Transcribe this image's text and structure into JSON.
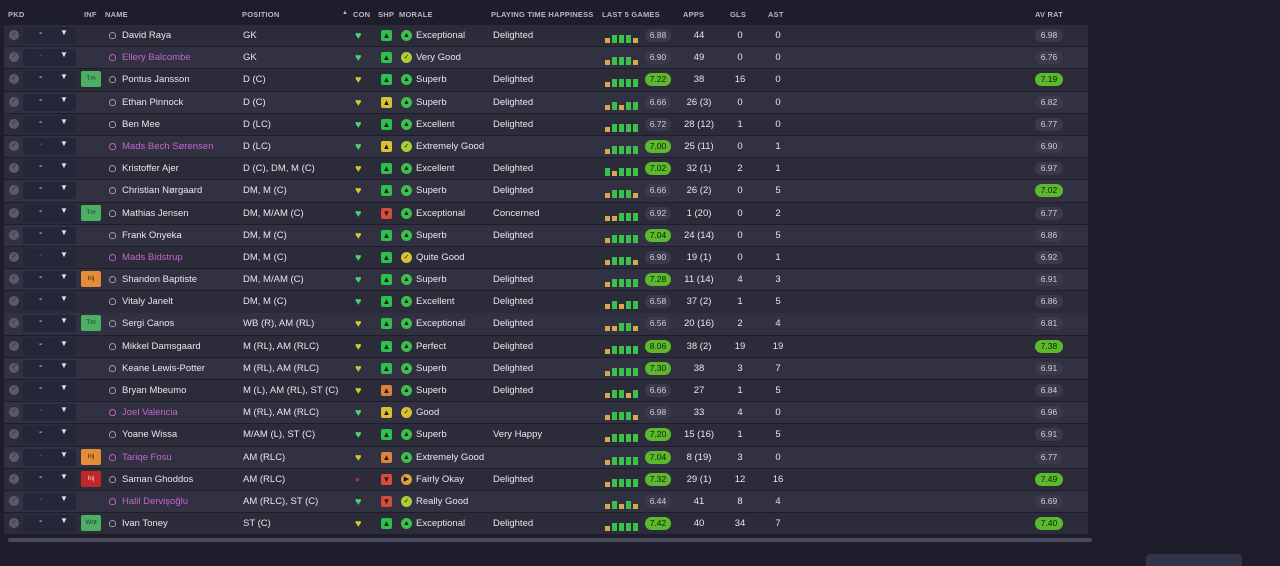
{
  "columns": {
    "pkd": "PKD",
    "inf": "INF",
    "name": "NAME",
    "position": "POSITION",
    "con": "CON",
    "shp": "SHP",
    "morale": "MORALE",
    "pth": "PLAYING TIME HAPPINESS",
    "last5": "LAST 5 GAMES",
    "apps": "APPS",
    "gls": "GLS",
    "ast": "AST",
    "avrat": "AV RAT",
    "sort_icon": "sort-ascending-arrow"
  },
  "players": [
    {
      "name": "David Raya",
      "pink": false,
      "inf": "",
      "position": "GK",
      "con": "green",
      "shp": "green",
      "morale": "Exceptional",
      "mor": "green",
      "pth": "Delighted",
      "last5": [
        1,
        2,
        2,
        2,
        1
      ],
      "last5avg": "6.88",
      "hi": false,
      "apps": "44",
      "gls": "0",
      "ast": "0",
      "avrat": "6.98",
      "avhi": false,
      "pkd_red": false
    },
    {
      "name": "Ellery Balcombe",
      "pink": true,
      "inf": "",
      "position": "GK",
      "con": "green",
      "shp": "green",
      "morale": "Very Good",
      "mor": "lime",
      "pth": "",
      "last5": [
        1,
        2,
        2,
        2,
        1
      ],
      "last5avg": "6.90",
      "hi": false,
      "apps": "49",
      "gls": "0",
      "ast": "0",
      "avrat": "6.76",
      "avhi": false,
      "pkd_red": true
    },
    {
      "name": "Pontus Jansson",
      "pink": false,
      "inf": "Tm",
      "position": "D (C)",
      "con": "yellow",
      "shp": "green",
      "morale": "Superb",
      "mor": "green",
      "pth": "Delighted",
      "last5": [
        1,
        2,
        2,
        2,
        2
      ],
      "last5avg": "7.22",
      "hi": true,
      "apps": "38",
      "gls": "16",
      "ast": "0",
      "avrat": "7.19",
      "avhi": true,
      "pkd_red": false
    },
    {
      "name": "Ethan Pinnock",
      "pink": false,
      "inf": "",
      "position": "D (C)",
      "con": "yellow",
      "shp": "yellow",
      "morale": "Superb",
      "mor": "green",
      "pth": "Delighted",
      "last5": [
        1,
        2,
        1,
        2,
        2
      ],
      "last5avg": "6.66",
      "hi": false,
      "apps": "26 (3)",
      "gls": "0",
      "ast": "0",
      "avrat": "6.82",
      "avhi": false,
      "pkd_red": false
    },
    {
      "name": "Ben Mee",
      "pink": false,
      "inf": "",
      "position": "D (LC)",
      "con": "green",
      "shp": "green",
      "morale": "Excellent",
      "mor": "green",
      "pth": "Delighted",
      "last5": [
        1,
        2,
        2,
        2,
        2
      ],
      "last5avg": "6.72",
      "hi": false,
      "apps": "28 (12)",
      "gls": "1",
      "ast": "0",
      "avrat": "6.77",
      "avhi": false,
      "pkd_red": false
    },
    {
      "name": "Mads Bech Sørensen",
      "pink": true,
      "inf": "",
      "position": "D (LC)",
      "con": "green",
      "shp": "yellow",
      "morale": "Extremely Good",
      "mor": "lime",
      "pth": "",
      "last5": [
        1,
        2,
        2,
        2,
        2
      ],
      "last5avg": "7.00",
      "hi": true,
      "apps": "25 (11)",
      "gls": "0",
      "ast": "1",
      "avrat": "6.90",
      "avhi": false,
      "pkd_red": true
    },
    {
      "name": "Kristoffer Ajer",
      "pink": false,
      "inf": "",
      "position": "D (C), DM, M (C)",
      "con": "yellow",
      "shp": "green",
      "morale": "Excellent",
      "mor": "green",
      "pth": "Delighted",
      "last5": [
        2,
        1,
        2,
        2,
        2
      ],
      "last5avg": "7.02",
      "hi": true,
      "apps": "32 (1)",
      "gls": "2",
      "ast": "1",
      "avrat": "6.97",
      "avhi": false,
      "pkd_red": false
    },
    {
      "name": "Christian Nørgaard",
      "pink": false,
      "inf": "",
      "position": "DM, M (C)",
      "con": "yellow",
      "shp": "green",
      "morale": "Superb",
      "mor": "green",
      "pth": "Delighted",
      "last5": [
        1,
        2,
        2,
        2,
        1
      ],
      "last5avg": "6.66",
      "hi": false,
      "apps": "26 (2)",
      "gls": "0",
      "ast": "5",
      "avrat": "7.02",
      "avhi": true,
      "pkd_red": false
    },
    {
      "name": "Mathias Jensen",
      "pink": false,
      "inf": "Tm",
      "position": "DM, M/AM (C)",
      "con": "green",
      "shp": "red",
      "morale": "Exceptional",
      "mor": "green",
      "pth": "Concerned",
      "last5": [
        1,
        1,
        2,
        2,
        2
      ],
      "last5avg": "6.92",
      "hi": false,
      "apps": "1 (20)",
      "gls": "0",
      "ast": "2",
      "avrat": "6.77",
      "avhi": false,
      "pkd_red": false
    },
    {
      "name": "Frank Onyeka",
      "pink": false,
      "inf": "",
      "position": "DM, M (C)",
      "con": "yellow",
      "shp": "green",
      "morale": "Superb",
      "mor": "green",
      "pth": "Delighted",
      "last5": [
        1,
        2,
        2,
        2,
        2
      ],
      "last5avg": "7.04",
      "hi": true,
      "apps": "24 (14)",
      "gls": "0",
      "ast": "5",
      "avrat": "6.86",
      "avhi": false,
      "pkd_red": false
    },
    {
      "name": "Mads Bidstrup",
      "pink": true,
      "inf": "",
      "position": "DM, M (C)",
      "con": "green",
      "shp": "green",
      "morale": "Quite Good",
      "mor": "yellow",
      "pth": "",
      "last5": [
        1,
        2,
        2,
        2,
        1
      ],
      "last5avg": "6.90",
      "hi": false,
      "apps": "19 (1)",
      "gls": "0",
      "ast": "1",
      "avrat": "6.92",
      "avhi": false,
      "pkd_red": true
    },
    {
      "name": "Shandon Baptiste",
      "pink": false,
      "inf": "Inj",
      "position": "DM, M/AM (C)",
      "con": "green",
      "shp": "green",
      "morale": "Superb",
      "mor": "green",
      "pth": "Delighted",
      "last5": [
        1,
        2,
        2,
        2,
        2
      ],
      "last5avg": "7.28",
      "hi": true,
      "apps": "11 (14)",
      "gls": "4",
      "ast": "3",
      "avrat": "6.91",
      "avhi": false,
      "pkd_red": false
    },
    {
      "name": "Vitaly Janelt",
      "pink": false,
      "inf": "",
      "position": "DM, M (C)",
      "con": "green",
      "shp": "green",
      "morale": "Excellent",
      "mor": "green",
      "pth": "Delighted",
      "last5": [
        1,
        2,
        1,
        2,
        2
      ],
      "last5avg": "6.58",
      "hi": false,
      "apps": "37 (2)",
      "gls": "1",
      "ast": "5",
      "avrat": "6.86",
      "avhi": false,
      "pkd_red": false
    },
    {
      "name": "Sergi Canos",
      "pink": false,
      "inf": "Tm",
      "position": "WB (R), AM (RL)",
      "con": "yellow",
      "shp": "green",
      "morale": "Exceptional",
      "mor": "green",
      "pth": "Delighted",
      "last5": [
        1,
        1,
        2,
        2,
        1
      ],
      "last5avg": "6.56",
      "hi": false,
      "apps": "20 (16)",
      "gls": "2",
      "ast": "4",
      "avrat": "6.81",
      "avhi": false,
      "pkd_red": false
    },
    {
      "name": "Mikkel Damsgaard",
      "pink": false,
      "inf": "",
      "position": "M (RL), AM (RLC)",
      "con": "yellow",
      "shp": "green",
      "morale": "Perfect",
      "mor": "green",
      "pth": "Delighted",
      "last5": [
        1,
        2,
        2,
        2,
        2
      ],
      "last5avg": "8.06",
      "hi": true,
      "apps": "38 (2)",
      "gls": "19",
      "ast": "19",
      "avrat": "7.38",
      "avhi": true,
      "pkd_red": false
    },
    {
      "name": "Keane Lewis-Potter",
      "pink": false,
      "inf": "",
      "position": "M (RL), AM (RLC)",
      "con": "yellow",
      "shp": "green",
      "morale": "Superb",
      "mor": "green",
      "pth": "Delighted",
      "last5": [
        1,
        2,
        2,
        2,
        2
      ],
      "last5avg": "7.30",
      "hi": true,
      "apps": "38",
      "gls": "3",
      "ast": "7",
      "avrat": "6.91",
      "avhi": false,
      "pkd_red": false
    },
    {
      "name": "Bryan Mbeumo",
      "pink": false,
      "inf": "",
      "position": "M (L), AM (RL), ST (C)",
      "con": "yellow",
      "shp": "orange",
      "morale": "Superb",
      "mor": "green",
      "pth": "Delighted",
      "last5": [
        1,
        2,
        2,
        1,
        2
      ],
      "last5avg": "6.66",
      "hi": false,
      "apps": "27",
      "gls": "1",
      "ast": "5",
      "avrat": "6.84",
      "avhi": false,
      "pkd_red": false
    },
    {
      "name": "Joel Valencia",
      "pink": true,
      "inf": "",
      "position": "M (RL), AM (RLC)",
      "con": "green",
      "shp": "yellow",
      "morale": "Good",
      "mor": "yellow",
      "pth": "",
      "last5": [
        1,
        2,
        2,
        2,
        1
      ],
      "last5avg": "6.98",
      "hi": false,
      "apps": "33",
      "gls": "4",
      "ast": "0",
      "avrat": "6.96",
      "avhi": false,
      "pkd_red": true
    },
    {
      "name": "Yoane Wissa",
      "pink": false,
      "inf": "",
      "position": "M/AM (L), ST (C)",
      "con": "green",
      "shp": "green",
      "morale": "Superb",
      "mor": "green",
      "pth": "Very Happy",
      "last5": [
        1,
        2,
        2,
        2,
        2
      ],
      "last5avg": "7.20",
      "hi": true,
      "apps": "15 (16)",
      "gls": "1",
      "ast": "5",
      "avrat": "6.91",
      "avhi": false,
      "pkd_red": false
    },
    {
      "name": "Tariqe Fosu",
      "pink": true,
      "inf": "Inj",
      "position": "AM (RLC)",
      "con": "yellow",
      "shp": "orange",
      "morale": "Extremely Good",
      "mor": "green",
      "pth": "",
      "last5": [
        1,
        2,
        2,
        2,
        2
      ],
      "last5avg": "7.04",
      "hi": true,
      "apps": "8 (19)",
      "gls": "3",
      "ast": "0",
      "avrat": "6.77",
      "avhi": false,
      "pkd_red": true
    },
    {
      "name": "Saman Ghoddos",
      "pink": false,
      "inf": "Inj",
      "infred": true,
      "position": "AM (RLC)",
      "con": "red",
      "shp": "red",
      "morale": "Fairly Okay",
      "mor": "orange",
      "pth": "Delighted",
      "last5": [
        1,
        2,
        2,
        2,
        2
      ],
      "last5avg": "7.32",
      "hi": true,
      "apps": "29 (1)",
      "gls": "12",
      "ast": "16",
      "avrat": "7.49",
      "avhi": true,
      "pkd_red": false
    },
    {
      "name": "Halil Dervişoğlu",
      "pink": true,
      "inf": "",
      "position": "AM (RLC), ST (C)",
      "con": "green",
      "shp": "red",
      "morale": "Really Good",
      "mor": "lime",
      "pth": "",
      "last5": [
        1,
        2,
        1,
        2,
        1
      ],
      "last5avg": "6.44",
      "hi": false,
      "apps": "41",
      "gls": "8",
      "ast": "4",
      "avrat": "6.69",
      "avhi": false,
      "pkd_red": true
    },
    {
      "name": "Ivan Toney",
      "pink": false,
      "inf": "Wnt",
      "position": "ST (C)",
      "con": "yellow",
      "shp": "green",
      "morale": "Exceptional",
      "mor": "green",
      "pth": "Delighted",
      "last5": [
        1,
        2,
        2,
        2,
        2
      ],
      "last5avg": "7.42",
      "hi": true,
      "apps": "40",
      "gls": "34",
      "ast": "7",
      "avrat": "7.40",
      "avhi": true,
      "pkd_red": false
    }
  ]
}
